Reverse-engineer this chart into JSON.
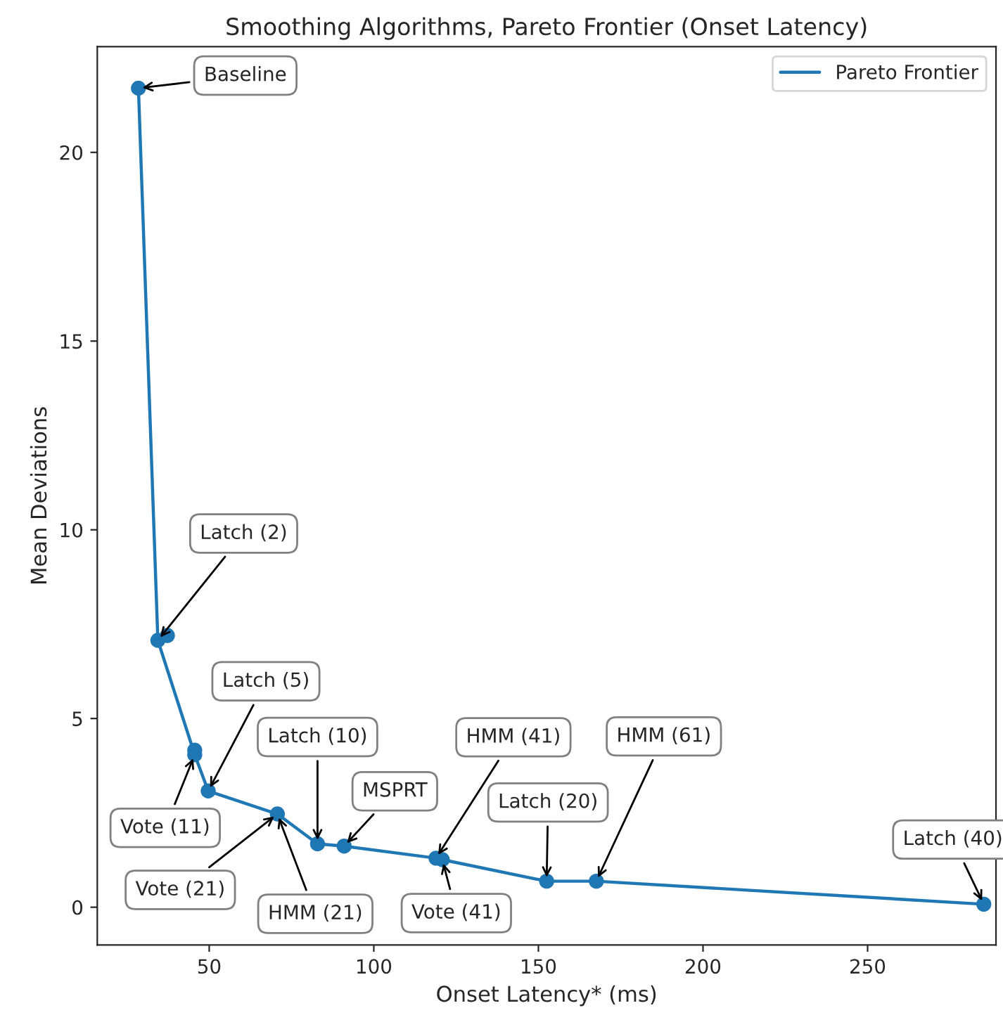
{
  "chart_data": {
    "type": "line",
    "title": "Smoothing Algorithms, Pareto Frontier (Onset Latency)",
    "xlabel": "Onset Latency* (ms)",
    "ylabel": "Mean Deviations",
    "xlim": [
      16,
      289
    ],
    "ylim": [
      -1.0,
      22.8
    ],
    "xticks": [
      50,
      100,
      150,
      200,
      250
    ],
    "yticks": [
      0,
      5,
      10,
      15,
      20
    ],
    "grid": false,
    "legend": "top right",
    "series": [
      {
        "name": "Pareto Frontier",
        "color": "#1f77b4",
        "marker": "none",
        "x": [
          28.5,
          34.4,
          45.6,
          49.7,
          70.7,
          82.9,
          91.0,
          118.9,
          120.8,
          152.5,
          167.6,
          285.3
        ],
        "values": [
          21.7,
          7.07,
          4.04,
          3.08,
          2.47,
          1.68,
          1.62,
          1.3,
          1.26,
          0.69,
          0.69,
          0.08
        ]
      },
      {
        "type": "scatter",
        "color": "#1f77b4",
        "marker": "circle",
        "x": [
          28.5,
          34.4,
          37.3,
          45.6,
          45.6,
          49.7,
          70.7,
          82.9,
          91.0,
          118.9,
          120.8,
          152.5,
          167.6,
          285.3
        ],
        "values": [
          21.7,
          7.07,
          7.2,
          4.16,
          4.04,
          3.08,
          2.47,
          1.68,
          1.62,
          1.3,
          1.26,
          0.69,
          0.69,
          0.08
        ]
      }
    ],
    "annotations": [
      {
        "text": "Baseline",
        "x": 28.5,
        "y": 21.7
      },
      {
        "text": "Latch (2)",
        "x": 34.4,
        "y": 7.07
      },
      {
        "text": "Latch (5)",
        "x": 49.7,
        "y": 3.08
      },
      {
        "text": "Vote (11)",
        "x": 45.6,
        "y": 4.04
      },
      {
        "text": "Latch (10)",
        "x": 82.9,
        "y": 1.68
      },
      {
        "text": "Vote (21)",
        "x": 70.7,
        "y": 2.47
      },
      {
        "text": "HMM (21)",
        "x": 70.7,
        "y": 2.47
      },
      {
        "text": "MSPRT",
        "x": 91.0,
        "y": 1.62
      },
      {
        "text": "HMM (41)",
        "x": 118.9,
        "y": 1.3
      },
      {
        "text": "Vote (41)",
        "x": 120.8,
        "y": 1.26
      },
      {
        "text": "Latch (20)",
        "x": 152.5,
        "y": 0.69
      },
      {
        "text": "HMM (61)",
        "x": 167.6,
        "y": 0.69
      },
      {
        "text": "Latch (40)",
        "x": 285.3,
        "y": 0.08
      }
    ]
  }
}
